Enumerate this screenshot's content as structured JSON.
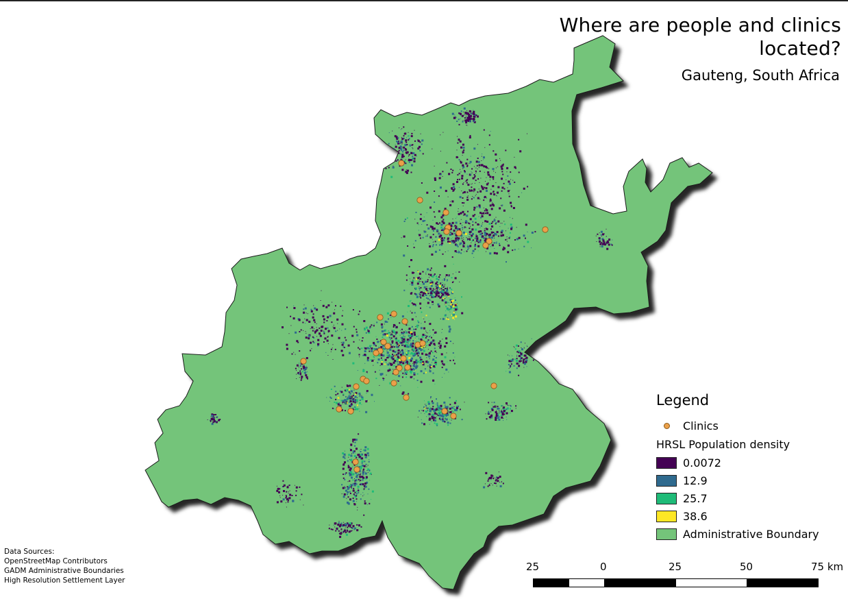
{
  "title": "Where are people and clinics located?",
  "subtitle": "Gauteng, South Africa",
  "legend": {
    "title": "Legend",
    "clinics_label": "Clinics",
    "clinic_color": "#eba04a",
    "density_heading": "HRSL Population density",
    "density_classes": [
      {
        "label": "0.0072",
        "color": "#440154"
      },
      {
        "label": "12.9",
        "color": "#2f6a8e"
      },
      {
        "label": "25.7",
        "color": "#1fbb78"
      },
      {
        "label": "38.6",
        "color": "#fde725"
      }
    ],
    "boundary_label": "Administrative Boundary",
    "boundary_color": "#74c47a"
  },
  "data_sources": {
    "heading": "Data Sources:",
    "items": [
      "OpenStreetMap Contributors",
      "GADM Administrative Boundaries",
      "High Resolution Settlement Layer"
    ]
  },
  "scale_bar": {
    "labels": [
      "25",
      "0",
      "25",
      "50",
      "75 km"
    ]
  }
}
